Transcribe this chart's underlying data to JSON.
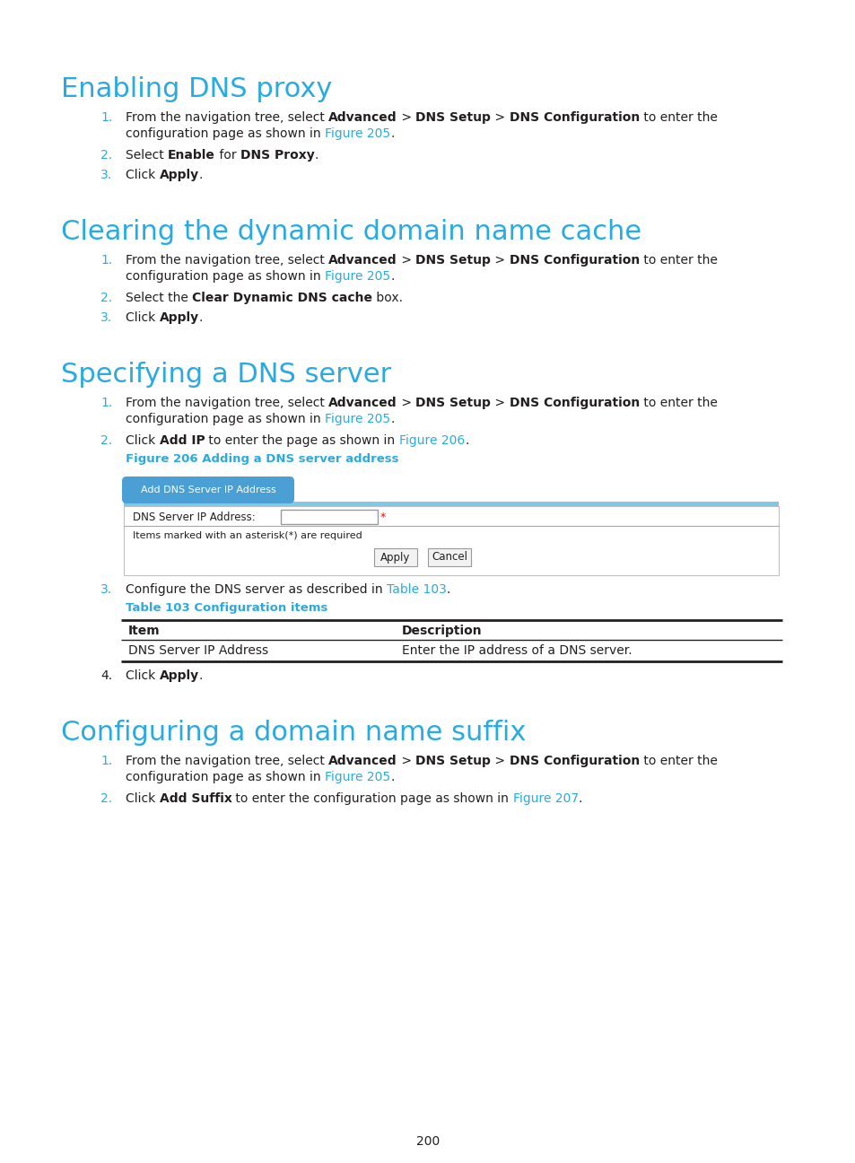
{
  "bg_color": "#ffffff",
  "cyan": "#29abe2",
  "black": "#231f20",
  "link": "#29abe2",
  "red": "#ff0000",
  "page_number": "200",
  "title_fontsize": 22,
  "body_fontsize": 10,
  "num_color": "#29abe2"
}
